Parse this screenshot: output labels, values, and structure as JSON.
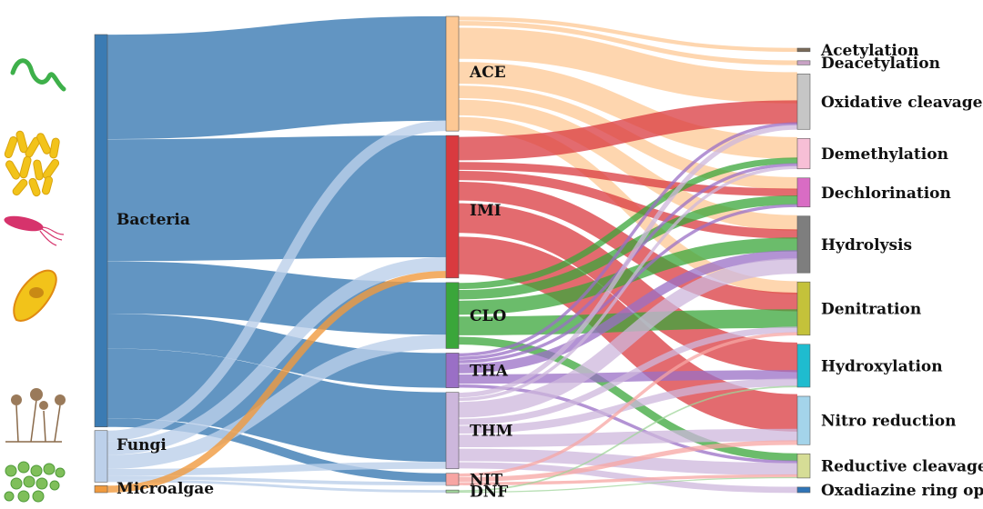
{
  "diagram": {
    "type": "sankey",
    "organisms": [
      {
        "key": "bacteria",
        "label": "Bacteria",
        "color": "#3b7bb3"
      },
      {
        "key": "fungi",
        "label": "Fungi",
        "color": "#bcd0ea"
      },
      {
        "key": "microalgae",
        "label": "Microalgae",
        "color": "#f09a3e"
      }
    ],
    "pesticides": [
      {
        "key": "ace",
        "label": "ACE",
        "color": "#fdc894"
      },
      {
        "key": "imi",
        "label": "IMI",
        "color": "#d93a3f"
      },
      {
        "key": "clo",
        "label": "CLO",
        "color": "#3aa63a"
      },
      {
        "key": "tha",
        "label": "THA",
        "color": "#9a6fc6"
      },
      {
        "key": "thm",
        "label": "THM",
        "color": "#cdb7dc"
      },
      {
        "key": "nit",
        "label": "NIT",
        "color": "#f7a5a3"
      },
      {
        "key": "dnf",
        "label": "DNF",
        "color": "#9fd49a"
      }
    ],
    "pathways": [
      {
        "key": "acetylation",
        "label": "Acetylation",
        "color": "#7a6a58"
      },
      {
        "key": "deacetylation",
        "label": "Deacetylation",
        "color": "#c7a2c4"
      },
      {
        "key": "oxidative",
        "label": "Oxidative cleavage",
        "color": "#c6c6c6"
      },
      {
        "key": "demethylation",
        "label": "Demethylation",
        "color": "#f7bfd6"
      },
      {
        "key": "dechlorination",
        "label": "Dechlorination",
        "color": "#d96cc4"
      },
      {
        "key": "hydrolysis",
        "label": "Hydrolysis",
        "color": "#7e7e7e"
      },
      {
        "key": "denitration",
        "label": "Denitration",
        "color": "#c4c23a"
      },
      {
        "key": "hydroxylation",
        "label": "Hydroxylation",
        "color": "#1fbccf"
      },
      {
        "key": "nitro",
        "label": "Nitro reduction",
        "color": "#a4d4ea"
      },
      {
        "key": "reductive",
        "label": "Reductive cleavage",
        "color": "#d6dd96"
      },
      {
        "key": "oxadiazine",
        "label": "Oxadiazine ring open",
        "color": "#2f74b6"
      }
    ],
    "flows_organism_to_pesticide": [
      {
        "source": "bacteria",
        "target": "ace",
        "value": 6
      },
      {
        "source": "bacteria",
        "target": "imi",
        "value": 7
      },
      {
        "source": "bacteria",
        "target": "clo",
        "value": 3
      },
      {
        "source": "bacteria",
        "target": "tha",
        "value": 2
      },
      {
        "source": "bacteria",
        "target": "thm",
        "value": 4
      },
      {
        "source": "bacteria",
        "target": "nit",
        "value": 0.5
      },
      {
        "source": "fungi",
        "target": "ace",
        "value": 0.6
      },
      {
        "source": "fungi",
        "target": "imi",
        "value": 0.8
      },
      {
        "source": "fungi",
        "target": "clo",
        "value": 0.8
      },
      {
        "source": "fungi",
        "target": "thm",
        "value": 0.4
      },
      {
        "source": "fungi",
        "target": "nit",
        "value": 0.2
      },
      {
        "source": "fungi",
        "target": "dnf",
        "value": 0.15
      },
      {
        "source": "microalgae",
        "target": "imi",
        "value": 0.4
      }
    ],
    "flows_pesticide_to_pathway": [
      {
        "source": "ace",
        "target": "acetylation",
        "value": 0.25
      },
      {
        "source": "ace",
        "target": "deacetylation",
        "value": 0.3
      },
      {
        "source": "ace",
        "target": "oxidative",
        "value": 2.0
      },
      {
        "source": "ace",
        "target": "demethylation",
        "value": 1.4
      },
      {
        "source": "ace",
        "target": "dechlorination",
        "value": 0.8
      },
      {
        "source": "ace",
        "target": "hydrolysis",
        "value": 1.0
      },
      {
        "source": "ace",
        "target": "denitration",
        "value": 0.85
      },
      {
        "source": "imi",
        "target": "oxidative",
        "value": 1.5
      },
      {
        "source": "imi",
        "target": "dechlorination",
        "value": 0.5
      },
      {
        "source": "imi",
        "target": "hydrolysis",
        "value": 0.6
      },
      {
        "source": "imi",
        "target": "denitration",
        "value": 1.2
      },
      {
        "source": "imi",
        "target": "hydroxylation",
        "value": 1.9
      },
      {
        "source": "imi",
        "target": "nitro",
        "value": 2.4
      },
      {
        "source": "clo",
        "target": "demethylation",
        "value": 0.4
      },
      {
        "source": "clo",
        "target": "dechlorination",
        "value": 0.6
      },
      {
        "source": "clo",
        "target": "hydrolysis",
        "value": 0.9
      },
      {
        "source": "clo",
        "target": "denitration",
        "value": 1.2
      },
      {
        "source": "clo",
        "target": "reductive",
        "value": 0.5
      },
      {
        "source": "tha",
        "target": "oxidative",
        "value": 0.2
      },
      {
        "source": "tha",
        "target": "demethylation",
        "value": 0.2
      },
      {
        "source": "tha",
        "target": "dechlorination",
        "value": 0.2
      },
      {
        "source": "tha",
        "target": "hydrolysis",
        "value": 0.6
      },
      {
        "source": "tha",
        "target": "hydroxylation",
        "value": 0.6
      },
      {
        "source": "tha",
        "target": "reductive",
        "value": 0.2
      },
      {
        "source": "thm",
        "target": "oxidative",
        "value": 0.3
      },
      {
        "source": "thm",
        "target": "demethylation",
        "value": 0.2
      },
      {
        "source": "thm",
        "target": "hydrolysis",
        "value": 1.0
      },
      {
        "source": "thm",
        "target": "denitration",
        "value": 0.4
      },
      {
        "source": "thm",
        "target": "hydroxylation",
        "value": 0.5
      },
      {
        "source": "thm",
        "target": "nitro",
        "value": 0.8
      },
      {
        "source": "thm",
        "target": "reductive",
        "value": 0.8
      },
      {
        "source": "thm",
        "target": "oxadiazine",
        "value": 0.4
      },
      {
        "source": "nit",
        "target": "denitration",
        "value": 0.2
      },
      {
        "source": "nit",
        "target": "nitro",
        "value": 0.3
      },
      {
        "source": "nit",
        "target": "reductive",
        "value": 0.2
      },
      {
        "source": "dnf",
        "target": "hydroxylation",
        "value": 0.1
      },
      {
        "source": "dnf",
        "target": "reductive",
        "value": 0.05
      }
    ],
    "icons": [
      {
        "name": "spirillum-bacteria-icon",
        "color": "#3eb04a"
      },
      {
        "name": "rod-bacteria-cluster-icon",
        "color": "#f2c31a"
      },
      {
        "name": "flagellated-bacteria-icon",
        "color": "#d6336c"
      },
      {
        "name": "ciliate-protozoa-icon",
        "color": "#f2c31a"
      },
      {
        "name": "fungi-sporangia-icon",
        "color": "#8a6a4a"
      },
      {
        "name": "microalgae-cells-icon",
        "color": "#7fbf5a"
      }
    ]
  }
}
